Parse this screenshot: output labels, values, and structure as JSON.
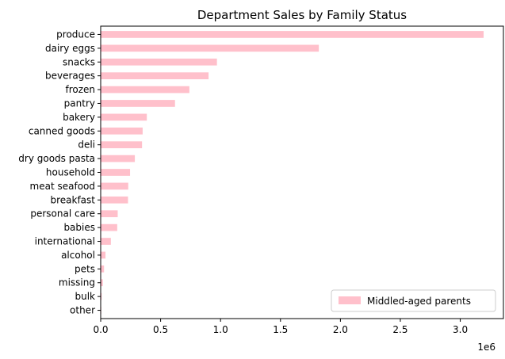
{
  "chart_data": {
    "type": "bar",
    "orientation": "horizontal",
    "title": "Department Sales by Family Status",
    "xlabel": "",
    "ylabel": "",
    "x_offset_label": "1e6",
    "xlim": [
      0,
      3360000
    ],
    "x_ticks": [
      {
        "value": 0,
        "label": "0.0"
      },
      {
        "value": 500000,
        "label": "0.5"
      },
      {
        "value": 1000000,
        "label": "1.0"
      },
      {
        "value": 1500000,
        "label": "1.5"
      },
      {
        "value": 2000000,
        "label": "2.0"
      },
      {
        "value": 2500000,
        "label": "2.5"
      },
      {
        "value": 3000000,
        "label": "3.0"
      }
    ],
    "categories": [
      "produce",
      "dairy eggs",
      "snacks",
      "beverages",
      "frozen",
      "pantry",
      "bakery",
      "canned goods",
      "deli",
      "dry goods pasta",
      "household",
      "meat seafood",
      "breakfast",
      "personal care",
      "babies",
      "international",
      "alcohol",
      "pets",
      "missing",
      "bulk",
      "other"
    ],
    "series": [
      {
        "name": "Middled-aged parents",
        "color": "#ffc0cb",
        "values": [
          3195000,
          1820000,
          970000,
          900000,
          740000,
          620000,
          385000,
          350000,
          345000,
          285000,
          245000,
          230000,
          228000,
          142000,
          138000,
          85000,
          40000,
          28000,
          18000,
          8000,
          5000
        ]
      }
    ],
    "grid": false,
    "legend_position": "lower-right"
  }
}
